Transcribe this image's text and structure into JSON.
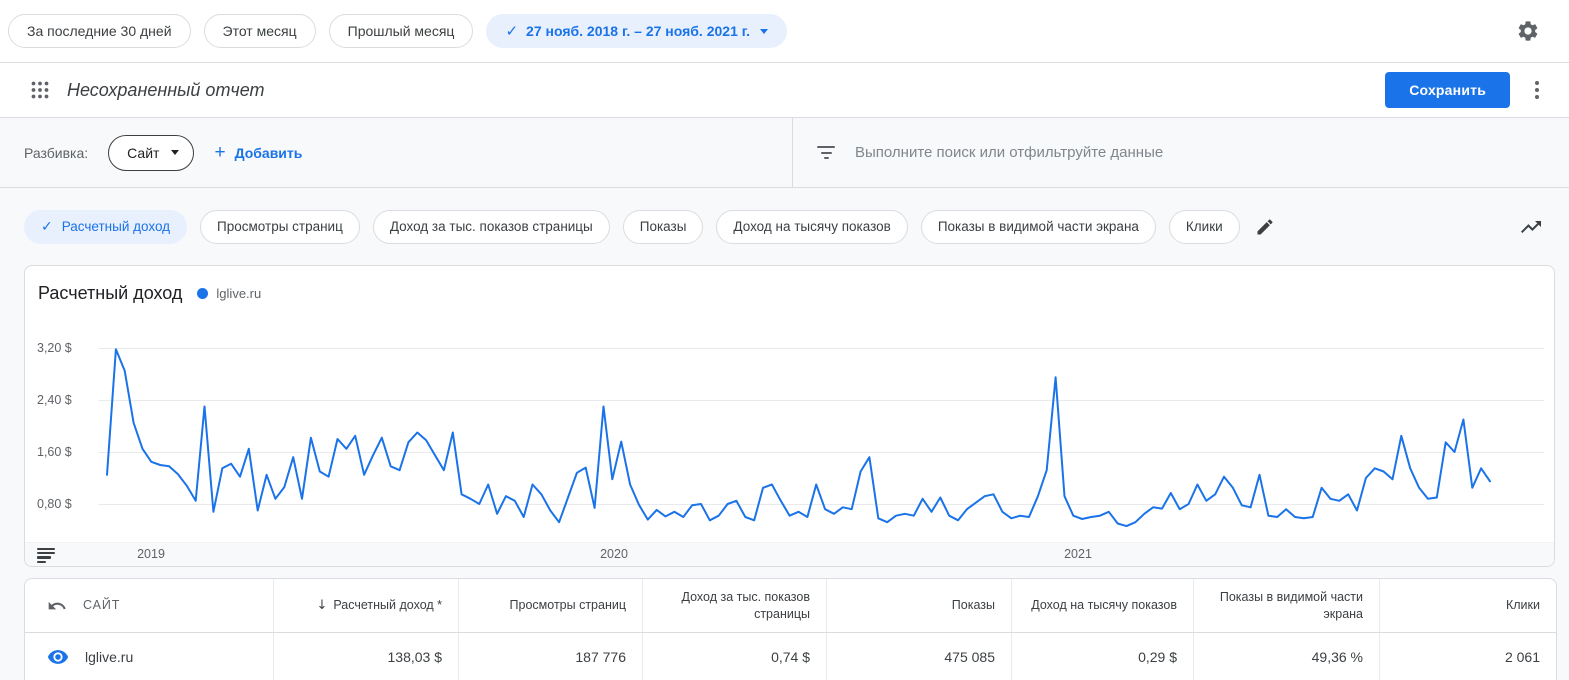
{
  "colors": {
    "accent": "#1a73e8",
    "selected_chip_bg": "#e8f0fe",
    "line": "#1a73e8"
  },
  "icons": {
    "check": "✓",
    "sort_desc": "↓",
    "plus": "+"
  },
  "toolbar": {
    "date_presets": [
      "За последние 30 дней",
      "Этот месяц",
      "Прошлый месяц"
    ],
    "date_range": "27 нояб. 2018 г. – 27 нояб. 2021 г."
  },
  "header": {
    "title": "Несохраненный отчет",
    "save_label": "Сохранить"
  },
  "breakdown": {
    "label": "Разбивка:",
    "dimension": "Сайт",
    "add_label": "Добавить",
    "search_placeholder": "Выполните поиск или отфильтруйте данные"
  },
  "metrics": {
    "selected": "Расчетный доход",
    "chips": [
      "Просмотры страниц",
      "Доход за тыс. показов страницы",
      "Показы",
      "Доход на тысячу показов",
      "Показы в видимой части экрана",
      "Клики"
    ]
  },
  "chart_data": {
    "type": "line",
    "title": "Расчетный доход",
    "legend": [
      "lglive.ru"
    ],
    "line_color": "#1a73e8",
    "grid": true,
    "x_ticks": [
      "2019",
      "2020",
      "2021"
    ],
    "y_ticks": [
      "3,20 $",
      "2,40 $",
      "1,60 $",
      "0,80 $"
    ],
    "y_tick_values": [
      3.2,
      2.4,
      1.6,
      0.8
    ],
    "ylim": [
      0,
      3.6
    ],
    "x_range": "weekly, 27 Nov 2018 – 27 Nov 2021",
    "series": [
      {
        "name": "lglive.ru",
        "values": [
          1.25,
          3.18,
          2.85,
          2.05,
          1.65,
          1.45,
          1.4,
          1.38,
          1.26,
          1.08,
          0.85,
          2.3,
          0.68,
          1.35,
          1.42,
          1.22,
          1.65,
          0.7,
          1.25,
          0.88,
          1.06,
          1.52,
          0.88,
          1.82,
          1.3,
          1.22,
          1.8,
          1.65,
          1.85,
          1.25,
          1.55,
          1.82,
          1.38,
          1.32,
          1.75,
          1.9,
          1.78,
          1.55,
          1.32,
          1.9,
          0.95,
          0.88,
          0.8,
          1.1,
          0.65,
          0.92,
          0.85,
          0.6,
          1.1,
          0.95,
          0.7,
          0.52,
          0.9,
          1.28,
          1.36,
          0.74,
          2.3,
          1.18,
          1.76,
          1.1,
          0.79,
          0.56,
          0.71,
          0.61,
          0.68,
          0.6,
          0.78,
          0.8,
          0.55,
          0.62,
          0.8,
          0.85,
          0.6,
          0.55,
          1.05,
          1.1,
          0.85,
          0.62,
          0.68,
          0.6,
          1.1,
          0.72,
          0.65,
          0.75,
          0.72,
          1.3,
          1.52,
          0.58,
          0.52,
          0.62,
          0.65,
          0.62,
          0.88,
          0.68,
          0.9,
          0.62,
          0.55,
          0.72,
          0.82,
          0.92,
          0.95,
          0.68,
          0.58,
          0.62,
          0.6,
          0.92,
          1.32,
          2.75,
          0.92,
          0.62,
          0.57,
          0.6,
          0.62,
          0.68,
          0.5,
          0.46,
          0.52,
          0.65,
          0.75,
          0.73,
          0.97,
          0.72,
          0.8,
          1.1,
          0.85,
          0.95,
          1.22,
          1.05,
          0.78,
          0.75,
          1.25,
          0.62,
          0.6,
          0.72,
          0.6,
          0.58,
          0.6,
          1.05,
          0.88,
          0.85,
          0.95,
          0.7,
          1.2,
          1.35,
          1.3,
          1.18,
          1.85,
          1.35,
          1.05,
          0.88,
          0.9,
          1.75,
          1.6,
          2.1,
          1.05,
          1.35,
          1.15
        ]
      }
    ]
  },
  "table": {
    "sort_icon": "↓",
    "columns": [
      "САЙТ",
      "Расчетный доход *",
      "Просмотры страниц",
      "Доход за тыс. показов страницы",
      "Показы",
      "Доход на тысячу показов",
      "Показы в видимой части экрана",
      "Клики"
    ],
    "row": {
      "site": "lglive.ru",
      "values": [
        "138,03 $",
        "187 776",
        "0,74 $",
        "475 085",
        "0,29 $",
        "49,36 %",
        "2 061"
      ]
    }
  }
}
